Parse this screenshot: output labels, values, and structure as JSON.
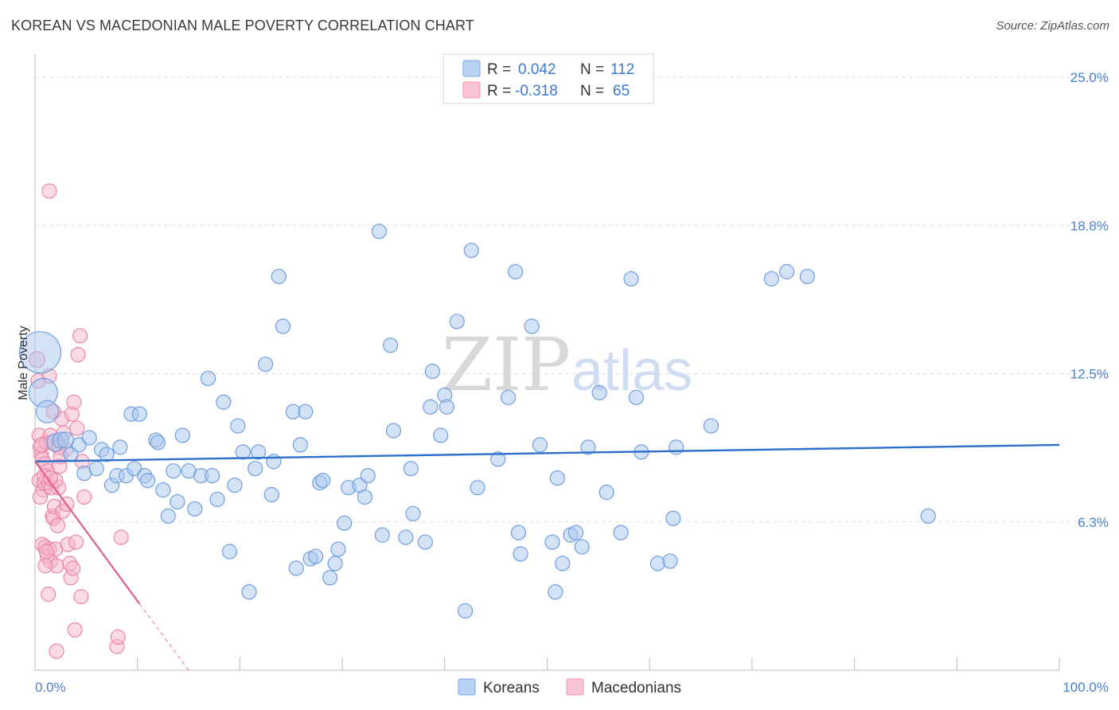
{
  "header": {
    "title": "KOREAN VS MACEDONIAN MALE POVERTY CORRELATION CHART",
    "source": "Source: ZipAtlas.com"
  },
  "watermark": {
    "zip": "ZIP",
    "atlas": "atlas"
  },
  "chart_data": {
    "type": "scatter",
    "title": "KOREAN VS MACEDONIAN MALE POVERTY CORRELATION CHART",
    "xlabel": "",
    "ylabel": "Male Poverty",
    "xlim": [
      0,
      100
    ],
    "ylim": [
      0,
      25
    ],
    "x_tick_labels": {
      "min": "0.0%",
      "max": "100.0%"
    },
    "y_ticks": [
      {
        "value": 6.25,
        "label": "6.3%"
      },
      {
        "value": 12.5,
        "label": "12.5%"
      },
      {
        "value": 18.75,
        "label": "18.8%"
      },
      {
        "value": 25.0,
        "label": "25.0%"
      }
    ],
    "legend": {
      "r_label": "R =",
      "n_label": "N =",
      "entries": [
        {
          "r": "0.042",
          "n": "112"
        },
        {
          "r": "-0.318",
          "n": "65"
        }
      ]
    },
    "colors": {
      "koreans_fill": "#a9c5ee",
      "koreans_stroke": "#6e9ee0",
      "koreans_line": "#2f6fcc",
      "macedonians_fill": "#f6b6ca",
      "macedonians_stroke": "#ec86a6",
      "macedonians_line": "#e0608a",
      "grid": "#dddddd",
      "axis": "#bbbbbb"
    },
    "series": [
      {
        "name": "Koreans",
        "trend": {
          "x0": 0,
          "y0": 8.8,
          "x1": 100,
          "y1": 9.5
        },
        "points": [
          [
            0.5,
            13.4,
            26
          ],
          [
            0.8,
            11.7,
            18
          ],
          [
            1.2,
            10.9,
            14
          ],
          [
            2.0,
            9.6,
            11
          ],
          [
            2.5,
            9.7,
            10
          ],
          [
            3.0,
            9.7,
            10
          ],
          [
            3.5,
            9.1,
            9
          ],
          [
            4.3,
            9.5,
            9
          ],
          [
            5.3,
            9.8,
            9
          ],
          [
            4.8,
            8.3,
            9
          ],
          [
            6.0,
            8.5,
            9
          ],
          [
            6.5,
            9.3,
            9
          ],
          [
            7.0,
            9.1,
            9
          ],
          [
            7.5,
            7.8,
            9
          ],
          [
            8.0,
            8.2,
            9
          ],
          [
            8.3,
            9.4,
            9
          ],
          [
            8.9,
            8.2,
            9
          ],
          [
            9.4,
            10.8,
            9
          ],
          [
            9.7,
            8.5,
            9
          ],
          [
            10.2,
            10.8,
            9
          ],
          [
            10.7,
            8.2,
            9
          ],
          [
            11.0,
            8.0,
            9
          ],
          [
            11.8,
            9.7,
            9
          ],
          [
            12.0,
            9.6,
            9
          ],
          [
            12.5,
            7.6,
            9
          ],
          [
            13.0,
            6.5,
            9
          ],
          [
            13.5,
            8.4,
            9
          ],
          [
            13.9,
            7.1,
            9
          ],
          [
            14.4,
            9.9,
            9
          ],
          [
            15.0,
            8.4,
            9
          ],
          [
            15.6,
            6.8,
            9
          ],
          [
            16.2,
            8.2,
            9
          ],
          [
            16.9,
            12.3,
            9
          ],
          [
            17.3,
            8.2,
            9
          ],
          [
            17.8,
            7.2,
            9
          ],
          [
            18.4,
            11.3,
            9
          ],
          [
            19.0,
            5.0,
            9
          ],
          [
            19.5,
            7.8,
            9
          ],
          [
            19.8,
            10.3,
            9
          ],
          [
            20.3,
            9.2,
            9
          ],
          [
            20.9,
            3.3,
            9
          ],
          [
            21.5,
            8.5,
            9
          ],
          [
            21.8,
            9.2,
            9
          ],
          [
            22.5,
            12.9,
            9
          ],
          [
            23.1,
            7.4,
            9
          ],
          [
            23.3,
            8.8,
            9
          ],
          [
            23.8,
            16.6,
            9
          ],
          [
            24.2,
            14.5,
            9
          ],
          [
            25.2,
            10.9,
            9
          ],
          [
            25.5,
            4.3,
            9
          ],
          [
            25.9,
            9.5,
            9
          ],
          [
            26.4,
            10.9,
            9
          ],
          [
            26.9,
            4.7,
            9
          ],
          [
            27.4,
            4.8,
            9
          ],
          [
            27.8,
            7.9,
            9
          ],
          [
            28.1,
            8.0,
            9
          ],
          [
            28.8,
            3.9,
            9
          ],
          [
            29.3,
            4.5,
            9
          ],
          [
            29.6,
            5.1,
            9
          ],
          [
            30.2,
            6.2,
            9
          ],
          [
            30.6,
            7.7,
            9
          ],
          [
            31.7,
            7.8,
            9
          ],
          [
            32.2,
            7.3,
            9
          ],
          [
            32.5,
            8.2,
            9
          ],
          [
            33.6,
            18.5,
            9
          ],
          [
            33.9,
            5.7,
            9
          ],
          [
            34.7,
            13.7,
            9
          ],
          [
            35.0,
            10.1,
            9
          ],
          [
            36.2,
            5.6,
            9
          ],
          [
            36.7,
            8.5,
            9
          ],
          [
            36.9,
            6.6,
            9
          ],
          [
            38.1,
            5.4,
            9
          ],
          [
            38.6,
            11.1,
            9
          ],
          [
            38.8,
            12.6,
            9
          ],
          [
            39.6,
            9.9,
            9
          ],
          [
            40.0,
            11.6,
            9
          ],
          [
            40.2,
            11.1,
            9
          ],
          [
            41.2,
            14.7,
            9
          ],
          [
            42.0,
            2.5,
            9
          ],
          [
            42.6,
            17.7,
            9
          ],
          [
            43.2,
            7.7,
            9
          ],
          [
            45.2,
            8.9,
            9
          ],
          [
            46.2,
            11.5,
            9
          ],
          [
            46.9,
            16.8,
            9
          ],
          [
            47.2,
            5.8,
            9
          ],
          [
            47.4,
            4.9,
            9
          ],
          [
            48.5,
            14.5,
            9
          ],
          [
            49.3,
            9.5,
            9
          ],
          [
            50.5,
            5.4,
            9
          ],
          [
            50.8,
            3.3,
            9
          ],
          [
            51.0,
            8.1,
            9
          ],
          [
            51.5,
            4.5,
            9
          ],
          [
            52.3,
            5.7,
            9
          ],
          [
            52.8,
            5.8,
            9
          ],
          [
            53.4,
            5.2,
            9
          ],
          [
            54.0,
            9.4,
            9
          ],
          [
            55.1,
            11.7,
            9
          ],
          [
            55.8,
            7.5,
            9
          ],
          [
            57.2,
            5.8,
            9
          ],
          [
            58.2,
            16.5,
            9
          ],
          [
            58.7,
            11.5,
            9
          ],
          [
            59.2,
            9.2,
            9
          ],
          [
            60.8,
            4.5,
            9
          ],
          [
            62.0,
            4.6,
            9
          ],
          [
            62.3,
            6.4,
            9
          ],
          [
            62.6,
            9.4,
            9
          ],
          [
            66.0,
            10.3,
            9
          ],
          [
            71.9,
            16.5,
            9
          ],
          [
            73.4,
            16.8,
            9
          ],
          [
            75.4,
            16.6,
            9
          ],
          [
            87.2,
            6.5,
            9
          ]
        ]
      },
      {
        "name": "Macedonians",
        "trend": {
          "x0": 0,
          "y0": 8.8,
          "x1": 10.2,
          "y1": 2.8,
          "dash_to_x": 15.0,
          "dash_to_y": 0.0
        },
        "points": [
          [
            0.2,
            13.1,
            10
          ],
          [
            0.3,
            12.2,
            9
          ],
          [
            0.4,
            9.9,
            9
          ],
          [
            0.5,
            9.4,
            9
          ],
          [
            0.6,
            9.1,
            9
          ],
          [
            0.7,
            8.9,
            9
          ],
          [
            0.4,
            8.0,
            9
          ],
          [
            0.8,
            7.6,
            9
          ],
          [
            0.5,
            7.3,
            9
          ],
          [
            0.9,
            7.9,
            9
          ],
          [
            1.0,
            8.7,
            9
          ],
          [
            1.1,
            9.6,
            9
          ],
          [
            1.2,
            8.4,
            9
          ],
          [
            1.3,
            7.9,
            9
          ],
          [
            0.7,
            5.3,
            9
          ],
          [
            1.0,
            5.2,
            9
          ],
          [
            1.2,
            4.8,
            9
          ],
          [
            1.4,
            5.1,
            9
          ],
          [
            1.5,
            4.6,
            9
          ],
          [
            1.6,
            7.7,
            9
          ],
          [
            1.7,
            6.5,
            9
          ],
          [
            1.8,
            6.4,
            9
          ],
          [
            1.9,
            6.9,
            9
          ],
          [
            2.0,
            5.1,
            9
          ],
          [
            2.1,
            4.4,
            9
          ],
          [
            2.2,
            6.1,
            9
          ],
          [
            2.3,
            7.7,
            9
          ],
          [
            1.4,
            12.4,
            9
          ],
          [
            1.5,
            9.9,
            9
          ],
          [
            1.6,
            9.6,
            9
          ],
          [
            1.4,
            20.2,
            9
          ],
          [
            2.6,
            10.6,
            9
          ],
          [
            2.8,
            10.0,
            9
          ],
          [
            3.0,
            9.3,
            9
          ],
          [
            3.2,
            5.3,
            9
          ],
          [
            3.4,
            4.5,
            9
          ],
          [
            3.5,
            3.9,
            9
          ],
          [
            3.6,
            10.8,
            9
          ],
          [
            3.7,
            4.3,
            9
          ],
          [
            3.8,
            11.3,
            9
          ],
          [
            3.9,
            1.7,
            9
          ],
          [
            4.0,
            5.4,
            9
          ],
          [
            4.1,
            10.2,
            9
          ],
          [
            4.2,
            13.3,
            9
          ],
          [
            4.4,
            14.1,
            9
          ],
          [
            4.5,
            3.1,
            9
          ],
          [
            4.6,
            8.8,
            9
          ],
          [
            4.8,
            7.3,
            9
          ],
          [
            1.3,
            3.2,
            9
          ],
          [
            2.1,
            0.8,
            9
          ],
          [
            8.0,
            1.0,
            9
          ],
          [
            8.1,
            1.4,
            9
          ],
          [
            8.4,
            5.6,
            9
          ],
          [
            2.3,
            9.4,
            9
          ],
          [
            2.5,
            9.0,
            9
          ],
          [
            1.8,
            10.9,
            9
          ],
          [
            1.1,
            5.0,
            9
          ],
          [
            0.9,
            8.2,
            9
          ],
          [
            0.6,
            9.5,
            9
          ],
          [
            2.4,
            8.6,
            9
          ],
          [
            2.7,
            6.7,
            9
          ],
          [
            3.1,
            7.0,
            9
          ],
          [
            1.0,
            4.4,
            9
          ],
          [
            2.0,
            8.0,
            9
          ],
          [
            1.5,
            8.1,
            9
          ]
        ]
      }
    ],
    "bottom_legend": [
      "Koreans",
      "Macedonians"
    ]
  }
}
